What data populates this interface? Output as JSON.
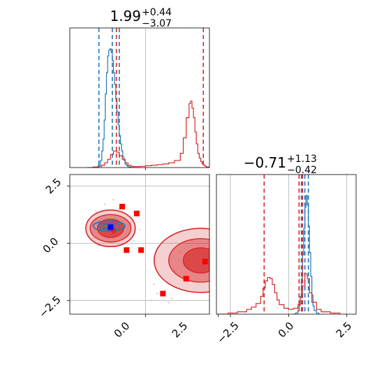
{
  "chart_data": [
    {
      "type": "histogram",
      "panel": "top-left marginal",
      "title": {
        "value": "1.99",
        "upper": "+0.44",
        "lower": "−3.07"
      },
      "xlim": [
        -2.6,
        2.2
      ],
      "x_grid_lines": [
        0.0
      ],
      "series": [
        {
          "color": "#1f77b4",
          "x": [
            -1.8,
            -1.7,
            -1.62,
            -1.55,
            -1.5,
            -1.46,
            -1.42,
            -1.38,
            -1.34,
            -1.3,
            -1.26,
            -1.22,
            -1.18,
            -1.14,
            -1.1,
            -1.06,
            -1.02,
            -0.98,
            -0.94,
            -0.9,
            -0.86,
            -0.82,
            -0.78,
            -0.74,
            -0.7,
            -0.66,
            -0.62,
            -0.58,
            -0.54,
            -0.5,
            -0.4
          ],
          "density": [
            0,
            0.005,
            0.02,
            0.06,
            0.14,
            0.24,
            0.4,
            0.62,
            0.8,
            0.94,
            0.99,
            1.0,
            0.97,
            0.9,
            0.8,
            0.7,
            0.58,
            0.47,
            0.36,
            0.27,
            0.2,
            0.14,
            0.09,
            0.06,
            0.03,
            0.02,
            0.01,
            0.005,
            0.003,
            0.001,
            0
          ],
          "vlines": [
            -1.6,
            -1.14,
            -0.9
          ]
        },
        {
          "color": "#d62728",
          "x": [
            -2.0,
            -1.8,
            -1.6,
            -1.5,
            -1.4,
            -1.3,
            -1.2,
            -1.1,
            -1.0,
            -0.9,
            -0.8,
            -0.7,
            -0.6,
            -0.5,
            -0.4,
            -0.2,
            0.0,
            0.2,
            0.4,
            0.6,
            0.8,
            1.0,
            1.2,
            1.3,
            1.4,
            1.5,
            1.55,
            1.6,
            1.65,
            1.7,
            1.75,
            1.8,
            1.85,
            1.9,
            1.95,
            2.0,
            2.05,
            2.1,
            2.2
          ],
          "density": [
            0,
            0.005,
            0.01,
            0.02,
            0.04,
            0.07,
            0.11,
            0.14,
            0.13,
            0.1,
            0.07,
            0.04,
            0.02,
            0.01,
            0.008,
            0.01,
            0.015,
            0.02,
            0.025,
            0.03,
            0.04,
            0.06,
            0.12,
            0.25,
            0.42,
            0.54,
            0.56,
            0.5,
            0.42,
            0.3,
            0.2,
            0.12,
            0.08,
            0.05,
            0.03,
            0.02,
            0.01,
            0.005,
            0
          ],
          "vlines": [
            -1.0,
            1.99
          ]
        }
      ]
    },
    {
      "type": "contour",
      "panel": "bottom-left joint",
      "xlim": [
        -2.6,
        2.2
      ],
      "ylim": [
        -3.1,
        3.0
      ],
      "x_grid_lines": [
        0.0,
        2.5
      ],
      "y_grid_lines": [
        2.5,
        0.0,
        -2.5
      ],
      "y_tick_labels": [
        "2.5",
        "0.0",
        "−2.5"
      ],
      "x_tick_labels": [
        "0.0",
        "2.5"
      ],
      "contours": {
        "blue": {
          "color": "#1f77b4",
          "center": [
            -1.25,
            0.75
          ],
          "levels": [
            [
              0.55,
              0.22
            ],
            [
              0.38,
              0.13
            ],
            [
              0.22,
              0.08
            ]
          ]
        },
        "red_cluster_1": {
          "color": "#d62728",
          "center": [
            -1.2,
            0.65
          ],
          "levels": [
            [
              0.85,
              0.8
            ],
            [
              0.7,
              0.6
            ],
            [
              0.45,
              0.4
            ]
          ]
        },
        "red_cluster_2": {
          "color": "#d62728",
          "center": [
            1.9,
            -0.75
          ],
          "levels": [
            [
              1.6,
              1.4
            ],
            [
              1.1,
              0.95
            ],
            [
              0.6,
              0.55
            ]
          ]
        }
      },
      "red_squares": [
        [
          -0.8,
          1.6
        ],
        [
          -0.3,
          1.3
        ],
        [
          -0.65,
          -0.3
        ],
        [
          -0.15,
          -0.3
        ],
        [
          1.4,
          -1.55
        ],
        [
          0.6,
          -2.2
        ],
        [
          2.05,
          -0.8
        ],
        [
          2.65,
          -0.45
        ]
      ],
      "blue_square": [
        -1.2,
        0.7
      ],
      "scatter_points": [
        [
          -1.7,
          1.4
        ],
        [
          -1.4,
          1.7
        ],
        [
          -0.5,
          0.9
        ],
        [
          -0.9,
          1.5
        ],
        [
          -1.8,
          0.2
        ],
        [
          -0.4,
          0.1
        ],
        [
          -1.1,
          1.9
        ],
        [
          0.3,
          -1.8
        ],
        [
          0.2,
          -2.5
        ],
        [
          0.8,
          -2.6
        ],
        [
          1.0,
          -1.2
        ],
        [
          2.7,
          -1.8
        ],
        [
          2.9,
          0.2
        ],
        [
          1.2,
          -0.4
        ],
        [
          0.4,
          -2.2
        ],
        [
          -1.6,
          -0.1
        ],
        [
          -0.2,
          0.6
        ],
        [
          2.4,
          -2.2
        ],
        [
          1.6,
          0.1
        ],
        [
          0.9,
          -2.4
        ]
      ]
    },
    {
      "type": "histogram",
      "panel": "bottom-right marginal",
      "title": {
        "value": "−0.71",
        "upper": "+1.13",
        "lower": "−0.42"
      },
      "xlim": [
        -3.1,
        2.9
      ],
      "x_grid_lines": [
        -2.5,
        0.0,
        2.5
      ],
      "x_tick_labels": [
        "−2.5",
        "0.0",
        "2.5"
      ],
      "series": [
        {
          "color": "#1f77b4",
          "x": [
            0.2,
            0.3,
            0.4,
            0.45,
            0.5,
            0.55,
            0.6,
            0.65,
            0.7,
            0.75,
            0.8,
            0.85,
            0.9,
            0.95,
            1.0,
            1.05,
            1.1,
            1.2,
            1.3
          ],
          "density": [
            0,
            0.01,
            0.03,
            0.07,
            0.15,
            0.3,
            0.5,
            0.72,
            0.9,
            1.0,
            0.92,
            0.74,
            0.52,
            0.32,
            0.16,
            0.07,
            0.03,
            0.01,
            0
          ],
          "vlines": [
            0.55,
            0.7,
            0.85
          ]
        },
        {
          "color": "#d62728",
          "x": [
            -3.0,
            -2.6,
            -2.2,
            -1.8,
            -1.6,
            -1.4,
            -1.2,
            -1.1,
            -1.0,
            -0.9,
            -0.8,
            -0.7,
            -0.6,
            -0.5,
            -0.4,
            -0.2,
            0.0,
            0.2,
            0.4,
            0.5,
            0.6,
            0.7,
            0.8,
            0.9,
            1.0,
            1.2,
            1.4,
            1.8,
            2.2
          ],
          "density": [
            0,
            0.01,
            0.02,
            0.04,
            0.06,
            0.09,
            0.15,
            0.22,
            0.28,
            0.31,
            0.3,
            0.25,
            0.18,
            0.12,
            0.08,
            0.05,
            0.04,
            0.05,
            0.08,
            0.14,
            0.24,
            0.34,
            0.3,
            0.18,
            0.1,
            0.04,
            0.02,
            0.01,
            0
          ],
          "vlines": [
            -1.05,
            0.45,
            0.6
          ]
        }
      ]
    }
  ]
}
